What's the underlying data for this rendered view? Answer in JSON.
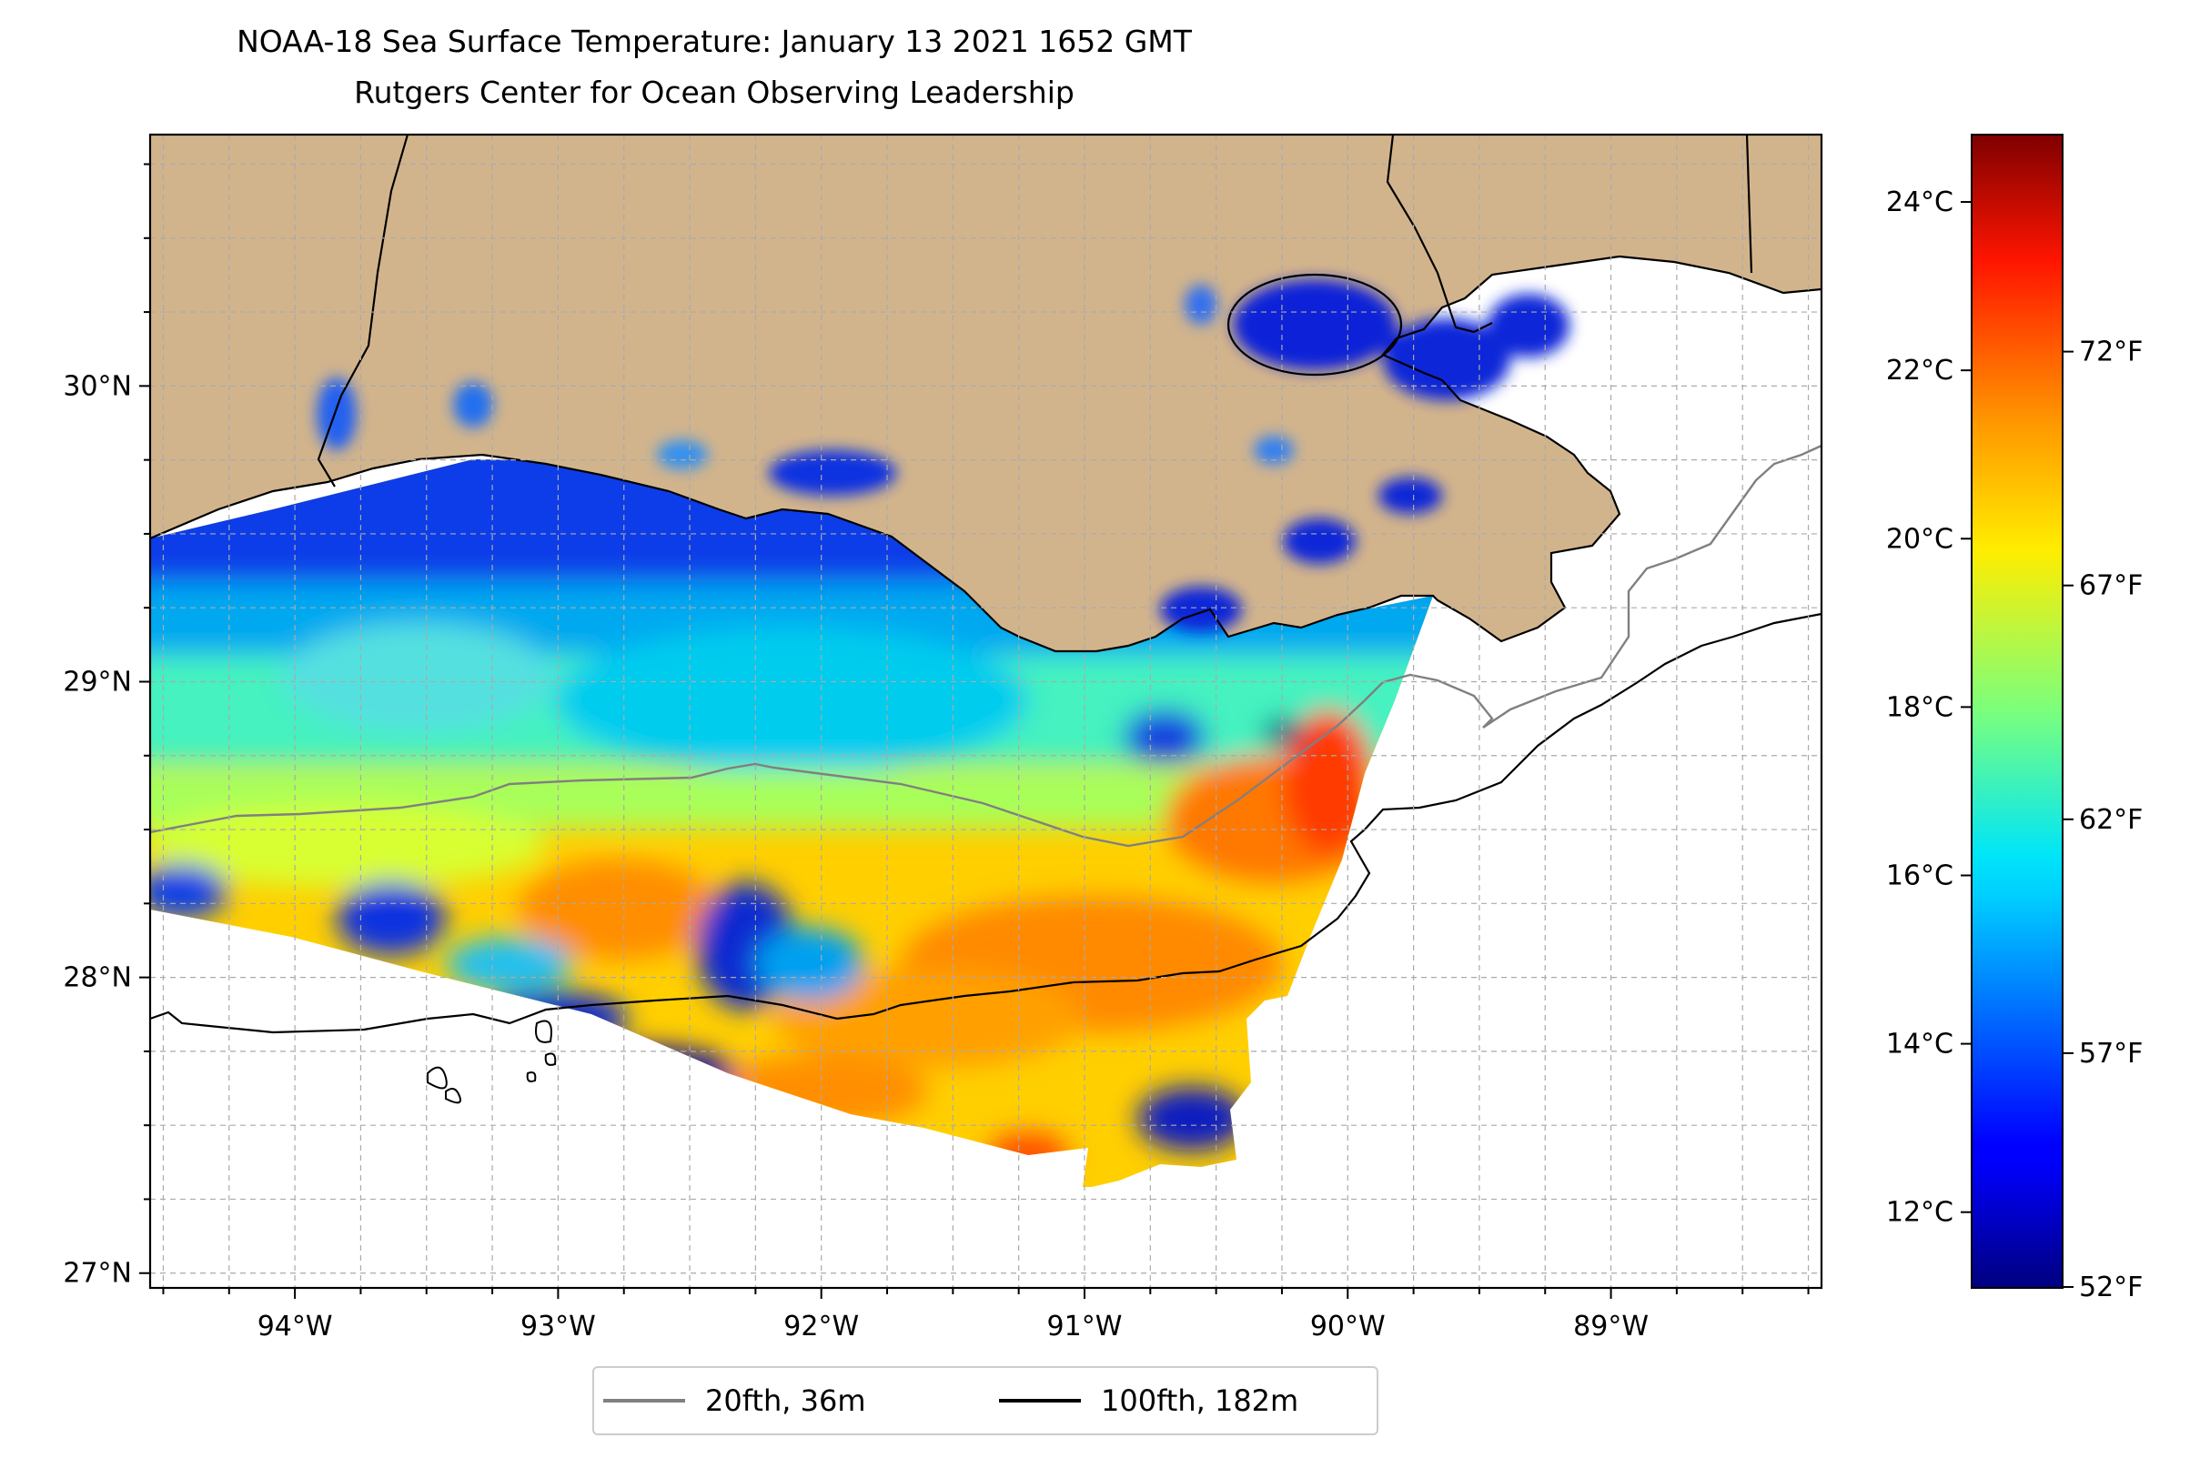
{
  "title": {
    "line1": "NOAA-18 Sea Surface Temperature: January 13 2021 1652 GMT",
    "line2": "Rutgers Center for Ocean Observing Leadership"
  },
  "map": {
    "lon_range": [
      -94.55,
      -88.2
    ],
    "lat_range": [
      26.95,
      30.85
    ],
    "x_ticks": [
      "94°W",
      "93°W",
      "92°W",
      "91°W",
      "90°W",
      "89°W"
    ],
    "x_tick_values": [
      -94,
      -93,
      -92,
      -91,
      -90,
      -89
    ],
    "y_ticks": [
      "27°N",
      "28°N",
      "29°N",
      "30°N"
    ],
    "y_tick_values": [
      27,
      28,
      29,
      30
    ],
    "grid": true,
    "land_color": "#d2b48c"
  },
  "legend": {
    "placement": "bottom-center",
    "items": [
      {
        "label": "20fth, 36m",
        "color": "#808080"
      },
      {
        "label": "100fth, 182m",
        "color": "#000000"
      }
    ]
  },
  "colorbar": {
    "colormap": "jet",
    "celsius_ticks": [
      "12°C",
      "14°C",
      "16°C",
      "18°C",
      "20°C",
      "22°C",
      "24°C"
    ],
    "celsius_values": [
      12,
      14,
      16,
      18,
      20,
      22,
      24
    ],
    "fahrenheit_ticks": [
      "52°F",
      "57°F",
      "62°F",
      "67°F",
      "72°F"
    ],
    "fahrenheit_values": [
      52,
      57,
      62,
      67,
      72
    ],
    "range_c": [
      11.1,
      24.8
    ]
  }
}
